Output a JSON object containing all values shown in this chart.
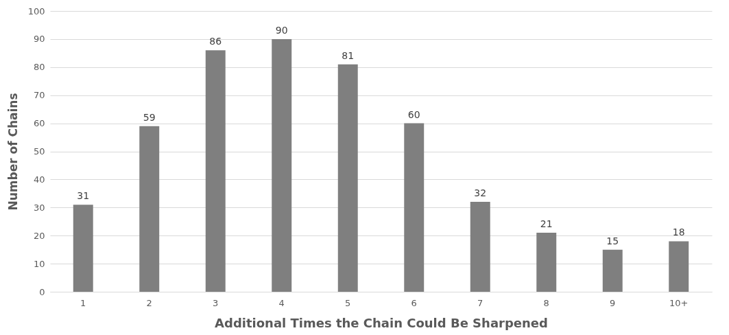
{
  "chart_data": {
    "type": "bar",
    "xlabel": "Additional Times the Chain Could Be Sharpened",
    "ylabel": "Number of Chains",
    "categories": [
      "1",
      "2",
      "3",
      "4",
      "5",
      "6",
      "7",
      "8",
      "9",
      "10+"
    ],
    "values": [
      31,
      59,
      86,
      90,
      81,
      60,
      32,
      21,
      15,
      18
    ],
    "color": "#7f7f7f",
    "ylim": [
      0,
      100
    ],
    "yticks": [
      0,
      10,
      20,
      30,
      40,
      50,
      60,
      70,
      80,
      90,
      100
    ],
    "grid": "y",
    "data_labels": true
  }
}
